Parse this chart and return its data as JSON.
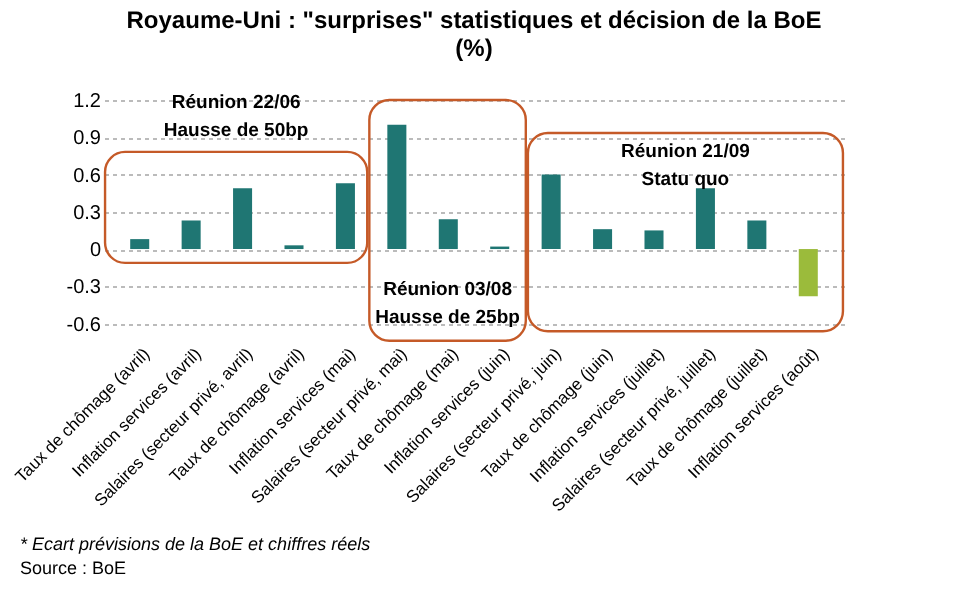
{
  "chart_data": {
    "type": "bar",
    "title": "Royaume-Uni : \"surprises\" statistiques et décision de la BoE\n(%)",
    "categories": [
      "Taux de chômage (avril)",
      "Inflation services (avril)",
      "Salaires (secteur privé, avril)",
      "Taux de chômage (avril)",
      "Inflation services (mai)",
      "Salaires (secteur privé, mai)",
      "Taux de chômage (mai)",
      "Inflation services (juin)",
      "Salaires (secteur privé, juin)",
      "Taux de chômage (juin)",
      "Inflation services (juillet)",
      "Salaires (secteur privé, juillet)",
      "Taux de chômage (juillet)",
      "Inflation services (août)"
    ],
    "values": [
      0.08,
      0.23,
      0.49,
      0.03,
      0.53,
      1.0,
      0.24,
      0.02,
      0.6,
      0.16,
      0.15,
      0.49,
      0.23,
      -0.38
    ],
    "colors": [
      "#1f7673",
      "#1f7673",
      "#1f7673",
      "#1f7673",
      "#1f7673",
      "#1f7673",
      "#1f7673",
      "#1f7673",
      "#1f7673",
      "#1f7673",
      "#1f7673",
      "#1f7673",
      "#1f7673",
      "#9bbb3b"
    ],
    "ylim": [
      -0.7,
      1.2
    ],
    "yticks": [
      -0.6,
      -0.3,
      0,
      0.3,
      0.6,
      0.9,
      1.2
    ],
    "grid": "y",
    "annotations": [
      "Réunion 22/06\nHausse de 50bp",
      "Réunion 03/08\nHausse de 25bp",
      "Réunion 21/09\nStatu quo",
      "* Ecart prévisions de la BoE et chiffres réels",
      "Source : BoE"
    ]
  }
}
